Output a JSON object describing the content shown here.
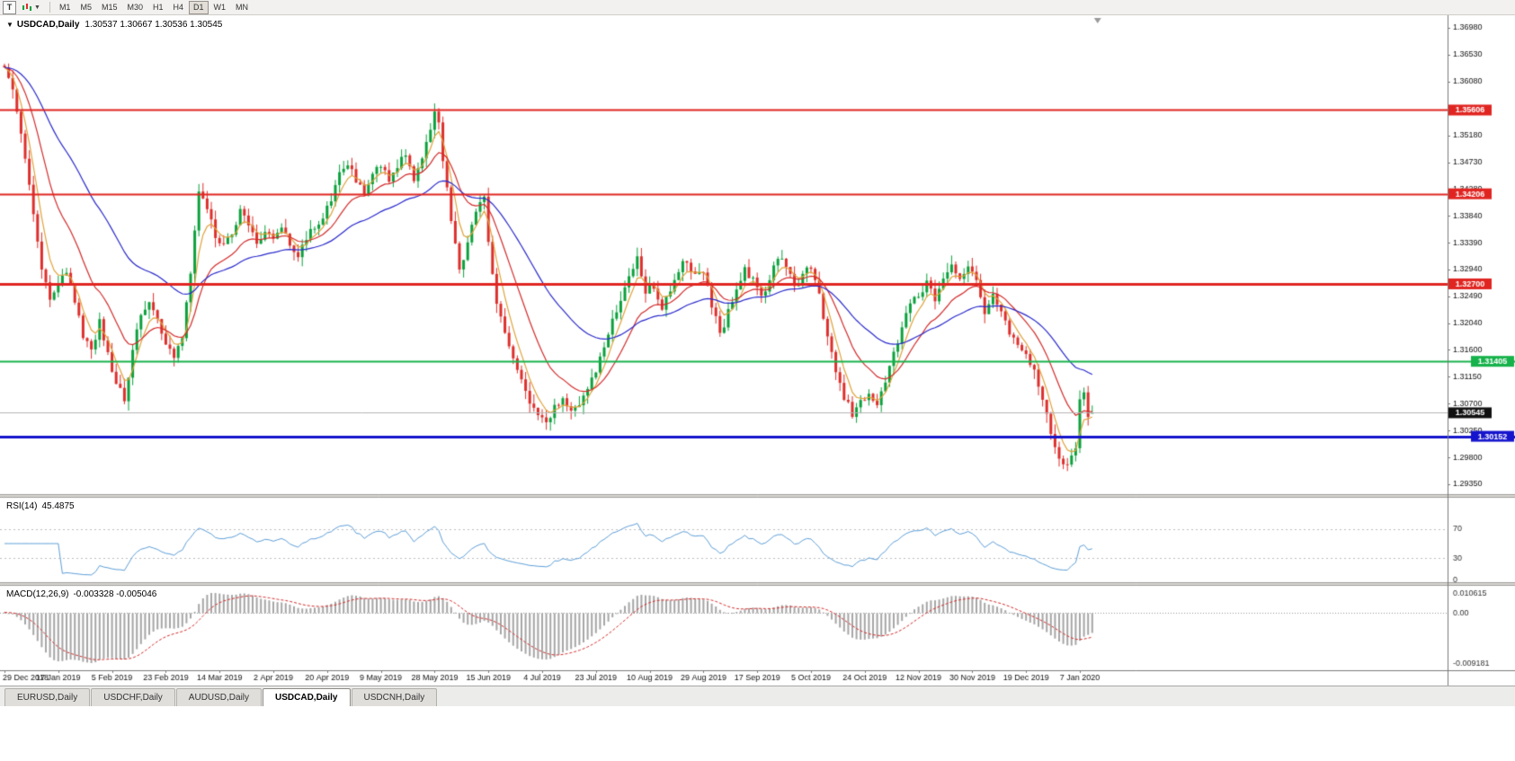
{
  "toolbar": {
    "t_button_label": "T",
    "timeframes": [
      "M1",
      "M5",
      "M15",
      "M30",
      "H1",
      "H4",
      "D1",
      "W1",
      "MN"
    ],
    "active_timeframe": "D1"
  },
  "chart": {
    "title_symbol": "USDCAD,Daily",
    "ohlc_text": "1.30537 1.30667 1.30536 1.30545"
  },
  "chart_data": {
    "type": "candlestick",
    "symbol": "USDCAD",
    "timeframe": "Daily",
    "title": "USDCAD,Daily",
    "ohlc_last": {
      "o": 1.30537,
      "h": 1.30667,
      "l": 1.30536,
      "c": 1.30545
    },
    "price_range": {
      "min": 1.2935,
      "max": 1.3698
    },
    "price_axis_ticks": [
      "1.36980",
      "1.36530",
      "1.36080",
      "1.35630",
      "1.35180",
      "1.34730",
      "1.34280",
      "1.33840",
      "1.33390",
      "1.32940",
      "1.32490",
      "1.32040",
      "1.31600",
      "1.31150",
      "1.30700",
      "1.30250",
      "1.29800",
      "1.29350"
    ],
    "date_labels": [
      "29 Dec 2018",
      "17 Jan 2019",
      "5 Feb 2019",
      "23 Feb 2019",
      "14 Mar 2019",
      "2 Apr 2019",
      "20 Apr 2019",
      "9 May 2019",
      "28 May 2019",
      "15 Jun 2019",
      "4 Jul 2019",
      "23 Jul 2019",
      "10 Aug 2019",
      "29 Aug 2019",
      "17 Sep 2019",
      "5 Oct 2019",
      "24 Oct 2019",
      "12 Nov 2019",
      "30 Nov 2019",
      "19 Dec 2019",
      "7 Jan 2020"
    ],
    "label_every_n_candles": 13,
    "candle_count": 264,
    "noise_seed": 11,
    "noise_amplitude": 0.0007,
    "wick_amplitude": 0.0016,
    "price_waypoints": [
      [
        0,
        1.3635
      ],
      [
        2,
        1.359
      ],
      [
        3,
        1.356
      ],
      [
        5,
        1.348
      ],
      [
        7,
        1.339
      ],
      [
        9,
        1.33
      ],
      [
        11,
        1.324
      ],
      [
        13,
        1.3265
      ],
      [
        15,
        1.3295
      ],
      [
        17,
        1.324
      ],
      [
        19,
        1.3185
      ],
      [
        21,
        1.316
      ],
      [
        23,
        1.3205
      ],
      [
        25,
        1.3155
      ],
      [
        27,
        1.3105
      ],
      [
        29,
        1.3075
      ],
      [
        31,
        1.3155
      ],
      [
        33,
        1.322
      ],
      [
        35,
        1.324
      ],
      [
        37,
        1.3205
      ],
      [
        39,
        1.3175
      ],
      [
        41,
        1.3145
      ],
      [
        43,
        1.3175
      ],
      [
        45,
        1.329
      ],
      [
        47,
        1.343
      ],
      [
        49,
        1.3395
      ],
      [
        51,
        1.335
      ],
      [
        53,
        1.333
      ],
      [
        55,
        1.3355
      ],
      [
        57,
        1.339
      ],
      [
        59,
        1.3365
      ],
      [
        61,
        1.334
      ],
      [
        63,
        1.3355
      ],
      [
        65,
        1.335
      ],
      [
        67,
        1.3365
      ],
      [
        69,
        1.333
      ],
      [
        71,
        1.332
      ],
      [
        73,
        1.3345
      ],
      [
        75,
        1.3365
      ],
      [
        77,
        1.3385
      ],
      [
        79,
        1.3415
      ],
      [
        81,
        1.345
      ],
      [
        83,
        1.3475
      ],
      [
        85,
        1.3445
      ],
      [
        87,
        1.3425
      ],
      [
        89,
        1.3455
      ],
      [
        91,
        1.347
      ],
      [
        93,
        1.3445
      ],
      [
        95,
        1.347
      ],
      [
        97,
        1.3485
      ],
      [
        99,
        1.3445
      ],
      [
        101,
        1.3475
      ],
      [
        103,
        1.353
      ],
      [
        104,
        1.3555
      ],
      [
        105,
        1.3545
      ],
      [
        106,
        1.348
      ],
      [
        108,
        1.337
      ],
      [
        110,
        1.3295
      ],
      [
        112,
        1.3335
      ],
      [
        114,
        1.3395
      ],
      [
        116,
        1.3415
      ],
      [
        117,
        1.334
      ],
      [
        119,
        1.3235
      ],
      [
        121,
        1.3185
      ],
      [
        123,
        1.314
      ],
      [
        125,
        1.3105
      ],
      [
        127,
        1.3075
      ],
      [
        129,
        1.305
      ],
      [
        131,
        1.3038
      ],
      [
        133,
        1.3065
      ],
      [
        135,
        1.3082
      ],
      [
        137,
        1.3055
      ],
      [
        139,
        1.3072
      ],
      [
        141,
        1.3095
      ],
      [
        143,
        1.3128
      ],
      [
        145,
        1.316
      ],
      [
        147,
        1.3205
      ],
      [
        149,
        1.3235
      ],
      [
        151,
        1.3282
      ],
      [
        153,
        1.332
      ],
      [
        155,
        1.3255
      ],
      [
        157,
        1.3268
      ],
      [
        159,
        1.3232
      ],
      [
        161,
        1.3262
      ],
      [
        163,
        1.3295
      ],
      [
        165,
        1.3312
      ],
      [
        167,
        1.3282
      ],
      [
        169,
        1.3292
      ],
      [
        171,
        1.3235
      ],
      [
        173,
        1.3185
      ],
      [
        175,
        1.3222
      ],
      [
        177,
        1.3262
      ],
      [
        179,
        1.3292
      ],
      [
        181,
        1.3278
      ],
      [
        183,
        1.3248
      ],
      [
        185,
        1.3272
      ],
      [
        187,
        1.3318
      ],
      [
        189,
        1.3302
      ],
      [
        191,
        1.3262
      ],
      [
        193,
        1.3282
      ],
      [
        195,
        1.3302
      ],
      [
        197,
        1.3252
      ],
      [
        199,
        1.3185
      ],
      [
        201,
        1.3122
      ],
      [
        203,
        1.3082
      ],
      [
        205,
        1.3052
      ],
      [
        207,
        1.3072
      ],
      [
        209,
        1.3085
      ],
      [
        211,
        1.3072
      ],
      [
        213,
        1.3105
      ],
      [
        215,
        1.3152
      ],
      [
        217,
        1.3202
      ],
      [
        219,
        1.3232
      ],
      [
        221,
        1.3252
      ],
      [
        223,
        1.3272
      ],
      [
        225,
        1.3242
      ],
      [
        227,
        1.3282
      ],
      [
        229,
        1.3305
      ],
      [
        231,
        1.3282
      ],
      [
        233,
        1.3295
      ],
      [
        235,
        1.3272
      ],
      [
        237,
        1.3225
      ],
      [
        239,
        1.3252
      ],
      [
        241,
        1.3222
      ],
      [
        243,
        1.3185
      ],
      [
        245,
        1.3165
      ],
      [
        247,
        1.3152
      ],
      [
        249,
        1.3122
      ],
      [
        251,
        1.3082
      ],
      [
        253,
        1.3022
      ],
      [
        255,
        1.2982
      ],
      [
        257,
        1.2962
      ],
      [
        259,
        1.3002
      ],
      [
        260,
        1.3072
      ],
      [
        261,
        1.3095
      ],
      [
        262,
        1.3042
      ],
      [
        263,
        1.30545
      ]
    ],
    "horizontal_lines": [
      {
        "price": 1.35606,
        "label": "1.35606",
        "color_key": "hline_red",
        "width": 2,
        "badge_side": "left"
      },
      {
        "price": 1.34206,
        "label": "1.34206",
        "color_key": "hline_red",
        "width": 2,
        "badge_side": "left"
      },
      {
        "price": 1.327,
        "label": "1.32700",
        "color_key": "hline_red",
        "width": 3,
        "badge_side": "left"
      },
      {
        "price": 1.31405,
        "label": "1.31405",
        "color_key": "hline_green",
        "width": 2,
        "badge_side": "right"
      },
      {
        "price": 1.30152,
        "label": "1.30152",
        "color_key": "hline_blue",
        "width": 3,
        "badge_side": "right"
      }
    ],
    "current_price": {
      "value": 1.30545,
      "label": "1.30545"
    },
    "moving_averages": [
      {
        "name": "fast",
        "period": 5,
        "color_key": "ma_fast"
      },
      {
        "name": "medium",
        "period": 15,
        "color_key": "ma_medium"
      },
      {
        "name": "slow",
        "period": 40,
        "color_key": "ma_slow"
      }
    ],
    "indicators": {
      "rsi": {
        "label": "RSI(14)",
        "value": "45.4875",
        "period": 14,
        "levels": [
          70,
          30
        ],
        "axis_labels": [
          "70",
          "30",
          "0"
        ]
      },
      "macd": {
        "label": "MACD(12,26,9)",
        "values_text": "-0.003328 -0.005046",
        "fast": 12,
        "slow": 26,
        "signal": 9,
        "axis_labels": [
          "0.010615",
          "0.00",
          "-0.009181"
        ]
      }
    }
  },
  "tabs": [
    {
      "label": "EURUSD,Daily",
      "active": false
    },
    {
      "label": "USDCHF,Daily",
      "active": false
    },
    {
      "label": "AUDUSD,Daily",
      "active": false
    },
    {
      "label": "USDCAD,Daily",
      "active": true
    },
    {
      "label": "USDCNH,Daily",
      "active": false
    }
  ],
  "colors": {
    "candle_up": "#0ba13c",
    "candle_down": "#dd2f2c",
    "ma_fast": "#e0a23a",
    "ma_medium": "#d42a2a",
    "ma_slow": "#2929cc",
    "hline_red": "#e02521",
    "hline_green": "#16b24b",
    "hline_blue": "#1515cd",
    "rsi_line": "#5e9fd8",
    "macd_histogram": "#a6a6a6",
    "macd_signal": "#d42a2a",
    "current_badge_bg": "#111111",
    "axis_text": "#111111"
  }
}
